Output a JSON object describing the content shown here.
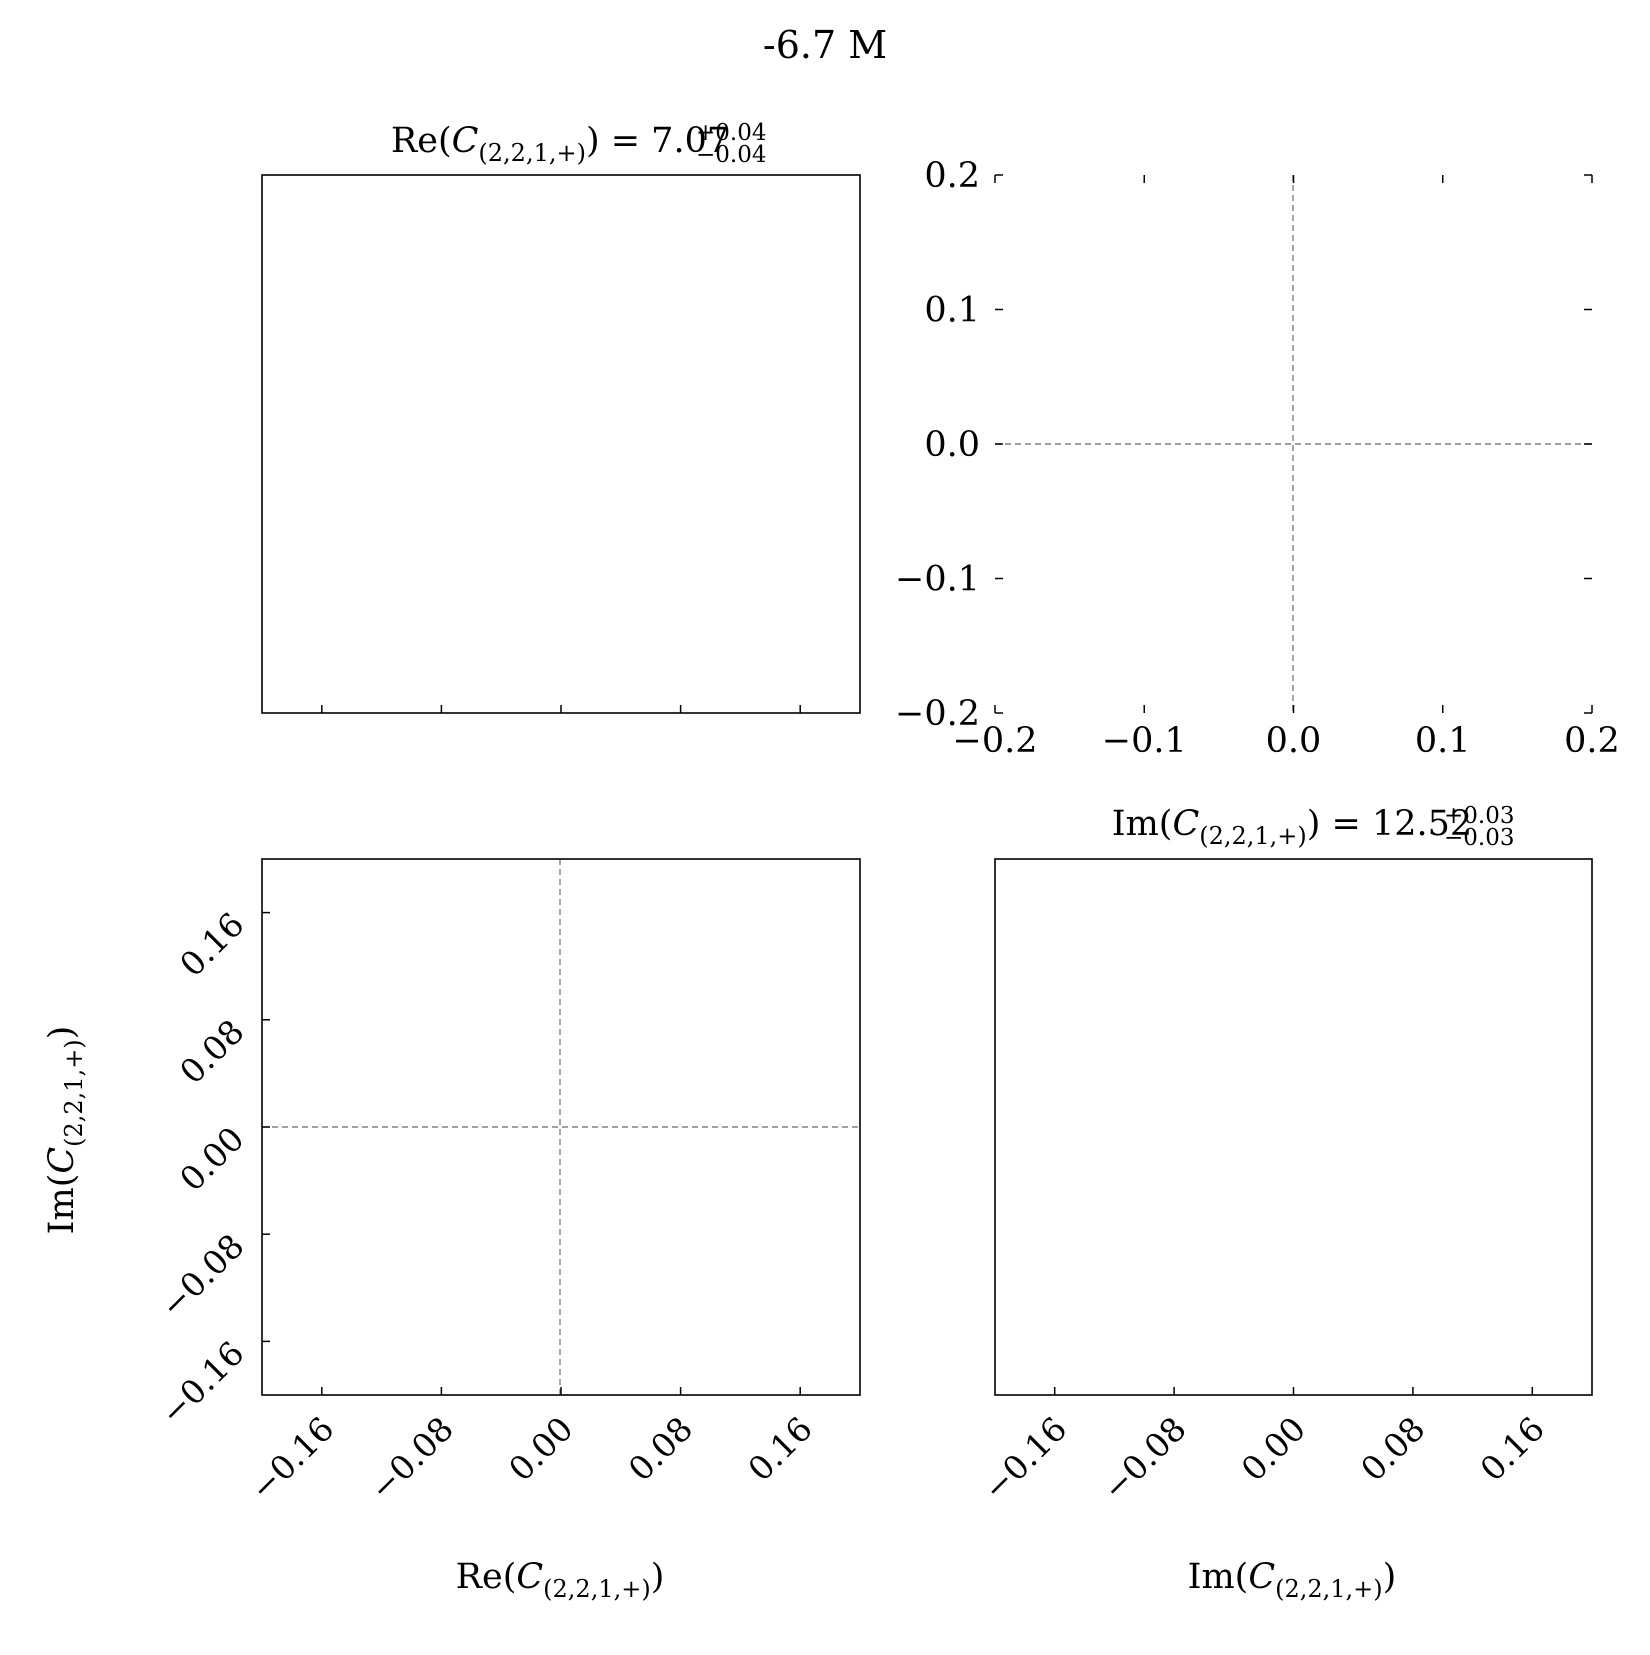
{
  "figure_title": "-6.7 M",
  "chart_data": [
    {
      "type": "histogram",
      "panel": "marginal-re",
      "title": {
        "prefix": "Re(",
        "var": "C",
        "sub": "(2,2,1,+)",
        "close": ") = ",
        "value": "7.07",
        "plus": "+0.04",
        "minus": "−0.04"
      },
      "xlim": [
        -0.2,
        0.2
      ],
      "xticks": [
        -0.16,
        -0.08,
        0.0,
        0.08,
        0.16
      ],
      "values": []
    },
    {
      "type": "scatter",
      "panel": "unused-corner",
      "xlim": [
        -0.2,
        0.2
      ],
      "ylim": [
        -0.2,
        0.2
      ],
      "xticks": [
        -0.2,
        -0.1,
        0.0,
        0.1,
        0.2
      ],
      "yticks": [
        -0.2,
        -0.1,
        0.0,
        0.1,
        0.2
      ],
      "xtick_labels": [
        "−0.2",
        "−0.1",
        "0.0",
        "0.1",
        "0.2"
      ],
      "ytick_labels": [
        "−0.2",
        "−0.1",
        "0.0",
        "0.1",
        "0.2"
      ],
      "reference_lines": {
        "x": 0.0,
        "y": 0.0
      },
      "points": []
    },
    {
      "type": "scatter",
      "panel": "joint",
      "xlim": [
        -0.2,
        0.2
      ],
      "ylim": [
        -0.2,
        0.2
      ],
      "xticks": [
        -0.16,
        -0.08,
        0.0,
        0.08,
        0.16
      ],
      "yticks": [
        -0.16,
        -0.08,
        0.0,
        0.08,
        0.16
      ],
      "xtick_labels": [
        "−0.16",
        "−0.08",
        "0.00",
        "0.08",
        "0.16"
      ],
      "ytick_labels": [
        "−0.16",
        "−0.08",
        "0.00",
        "0.08",
        "0.16"
      ],
      "xlabel": {
        "prefix": "Re(",
        "var": "C",
        "sub": "(2,2,1,+)",
        "close": ")"
      },
      "ylabel": {
        "prefix": "Im(",
        "var": "C",
        "sub": "(2,2,1,+)",
        "close": ")"
      },
      "reference_lines": {
        "x": 0.0,
        "y": 0.0
      },
      "points": []
    },
    {
      "type": "histogram",
      "panel": "marginal-im",
      "title": {
        "prefix": "Im(",
        "var": "C",
        "sub": "(2,2,1,+)",
        "close": ") = ",
        "value": "12.52",
        "plus": "+0.03",
        "minus": "−0.03"
      },
      "xlim": [
        -0.2,
        0.2
      ],
      "xticks": [
        -0.16,
        -0.08,
        0.0,
        0.08,
        0.16
      ],
      "xtick_labels": [
        "−0.16",
        "−0.08",
        "0.00",
        "0.08",
        "0.16"
      ],
      "xlabel": {
        "prefix": "Im(",
        "var": "C",
        "sub": "(2,2,1,+)",
        "close": ")"
      },
      "values": []
    }
  ]
}
